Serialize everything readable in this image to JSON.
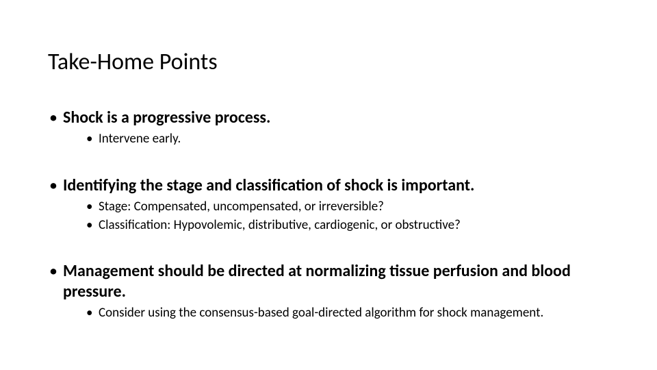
{
  "colors": {
    "background": "#ffffff",
    "text": "#000000"
  },
  "typography": {
    "font_family": "Calibri",
    "title_fontsize_pt": 28,
    "title_weight": 400,
    "level1_fontsize_pt": 20,
    "level1_weight": 700,
    "level2_fontsize_pt": 16,
    "level2_weight": 400
  },
  "title": "Take-Home Points",
  "bullets": [
    {
      "text": "Shock is a progressive process.",
      "sub": [
        "Intervene early."
      ]
    },
    {
      "text": "Identifying the stage and classification of shock is important.",
      "sub": [
        "Stage:  Compensated, uncompensated, or irreversible?",
        "Classification:  Hypovolemic, distributive, cardiogenic, or obstructive?"
      ]
    },
    {
      "text": "Management should be directed at normalizing  tissue perfusion and blood pressure.",
      "sub": [
        "Consider using the consensus-based goal-directed algorithm for shock management."
      ]
    }
  ]
}
